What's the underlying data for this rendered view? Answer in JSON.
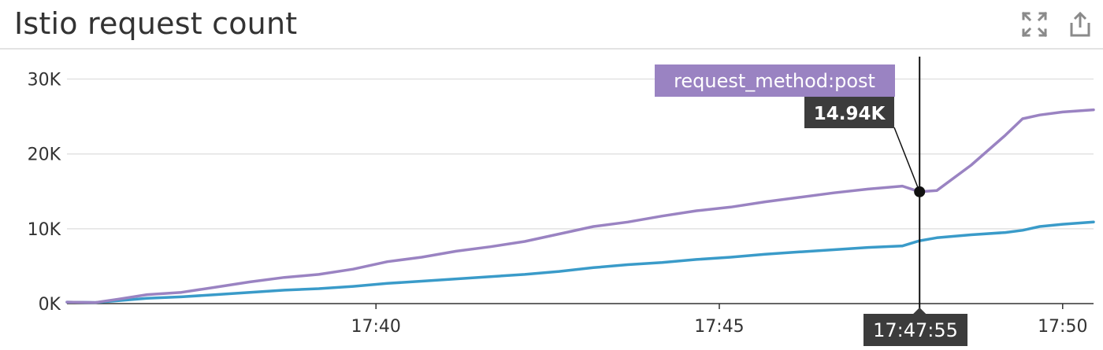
{
  "widget": {
    "title": "Istio request count",
    "icons": {
      "fullscreen": "fullscreen-icon",
      "export": "export-icon"
    }
  },
  "colors": {
    "series_post": "#9a83c2",
    "series_other": "#3a9bc9",
    "tooltip_label_bg": "#9a83c2",
    "tooltip_value_bg": "#3c3c3c"
  },
  "chart_data": {
    "type": "line",
    "title": "Istio request count",
    "xlabel": "",
    "ylabel": "",
    "x_unit": "time of day",
    "xlim": [
      "17:35:30",
      "17:50:27"
    ],
    "ylim": [
      0,
      33000
    ],
    "grid": true,
    "y_ticks": [
      0,
      10000,
      20000,
      30000
    ],
    "y_tick_labels": [
      "0K",
      "10K",
      "20K",
      "30K"
    ],
    "x_ticks": [
      "17:40",
      "17:45",
      "17:50"
    ],
    "series": [
      {
        "name": "request_method:post",
        "color": "#9a83c2",
        "points": [
          [
            "17:35:30",
            200
          ],
          [
            "17:35:55",
            150
          ],
          [
            "17:36:15",
            600
          ],
          [
            "17:36:40",
            1200
          ],
          [
            "17:37:10",
            1500
          ],
          [
            "17:37:40",
            2200
          ],
          [
            "17:38:10",
            2900
          ],
          [
            "17:38:40",
            3500
          ],
          [
            "17:39:10",
            3900
          ],
          [
            "17:39:40",
            4600
          ],
          [
            "17:40:10",
            5600
          ],
          [
            "17:40:40",
            6200
          ],
          [
            "17:41:10",
            7000
          ],
          [
            "17:41:40",
            7600
          ],
          [
            "17:42:10",
            8300
          ],
          [
            "17:42:40",
            9300
          ],
          [
            "17:43:10",
            10300
          ],
          [
            "17:43:40",
            10900
          ],
          [
            "17:44:10",
            11700
          ],
          [
            "17:44:40",
            12400
          ],
          [
            "17:45:10",
            12900
          ],
          [
            "17:45:40",
            13600
          ],
          [
            "17:46:10",
            14200
          ],
          [
            "17:46:40",
            14800
          ],
          [
            "17:47:10",
            15300
          ],
          [
            "17:47:40",
            15700
          ],
          [
            "17:47:55",
            14940
          ],
          [
            "17:48:10",
            15100
          ],
          [
            "17:48:40",
            18500
          ],
          [
            "17:49:10",
            22500
          ],
          [
            "17:49:25",
            24700
          ],
          [
            "17:49:40",
            25200
          ],
          [
            "17:50:00",
            25600
          ],
          [
            "17:50:27",
            25900
          ]
        ]
      },
      {
        "name": "",
        "color": "#3a9bc9",
        "points": [
          [
            "17:35:30",
            200
          ],
          [
            "17:35:55",
            150
          ],
          [
            "17:36:15",
            400
          ],
          [
            "17:36:40",
            700
          ],
          [
            "17:37:10",
            900
          ],
          [
            "17:37:40",
            1200
          ],
          [
            "17:38:10",
            1500
          ],
          [
            "17:38:40",
            1800
          ],
          [
            "17:39:10",
            2000
          ],
          [
            "17:39:40",
            2300
          ],
          [
            "17:40:10",
            2700
          ],
          [
            "17:40:40",
            3000
          ],
          [
            "17:41:10",
            3300
          ],
          [
            "17:41:40",
            3600
          ],
          [
            "17:42:10",
            3900
          ],
          [
            "17:42:40",
            4300
          ],
          [
            "17:43:10",
            4800
          ],
          [
            "17:43:40",
            5200
          ],
          [
            "17:44:10",
            5500
          ],
          [
            "17:44:40",
            5900
          ],
          [
            "17:45:10",
            6200
          ],
          [
            "17:45:40",
            6600
          ],
          [
            "17:46:10",
            6900
          ],
          [
            "17:46:40",
            7200
          ],
          [
            "17:47:10",
            7500
          ],
          [
            "17:47:40",
            7700
          ],
          [
            "17:47:55",
            8400
          ],
          [
            "17:48:10",
            8800
          ],
          [
            "17:48:40",
            9200
          ],
          [
            "17:49:10",
            9500
          ],
          [
            "17:49:25",
            9800
          ],
          [
            "17:49:40",
            10300
          ],
          [
            "17:50:00",
            10600
          ],
          [
            "17:50:27",
            10900
          ]
        ]
      }
    ],
    "hover": {
      "time_label": "17:47:55",
      "series_label": "request_method:post",
      "value_label": "14.94K",
      "value": 14940
    }
  }
}
